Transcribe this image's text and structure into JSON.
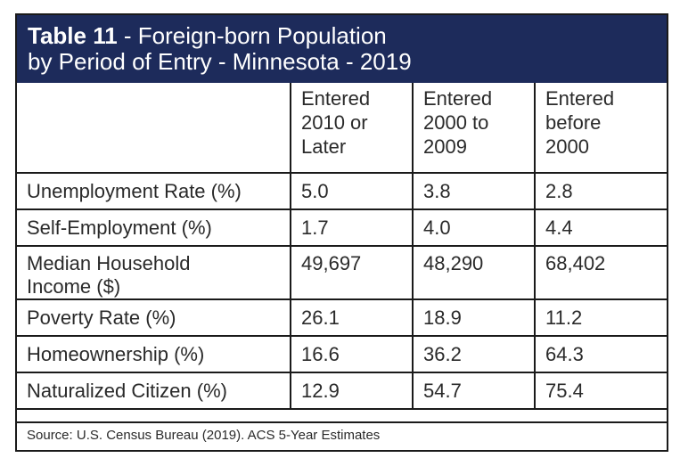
{
  "title": {
    "number": "Table 11",
    "line1_rest": " - Foreign-born Population",
    "line2": "by Period of Entry - Minnesota - 2019"
  },
  "columns": [
    {
      "line1": "Entered",
      "line2": "2010 or",
      "line3": "Later"
    },
    {
      "line1": "Entered",
      "line2": "2000 to",
      "line3": "2009"
    },
    {
      "line1": "Entered",
      "line2": "before",
      "line3": "2000"
    }
  ],
  "rows": [
    {
      "label": "Unemployment Rate (%)",
      "values": [
        "5.0",
        "3.8",
        "2.8"
      ]
    },
    {
      "label": "Self-Employment (%)",
      "values": [
        "1.7",
        "4.0",
        "4.4"
      ]
    },
    {
      "label_line1": "Median Household",
      "label_line2": "Income ($)",
      "values": [
        "49,697",
        "48,290",
        "68,402"
      ]
    },
    {
      "label": "Poverty Rate (%)",
      "values": [
        "26.1",
        "18.9",
        "11.2"
      ]
    },
    {
      "label": "Homeownership (%)",
      "values": [
        "16.6",
        "36.2",
        "64.3"
      ]
    },
    {
      "label": "Naturalized Citizen (%)",
      "values": [
        "12.9",
        "54.7",
        "75.4"
      ]
    }
  ],
  "source": "Source: U.S. Census Bureau (2019). ACS 5-Year Estimates",
  "colors": {
    "title_bg": "#1d2b5b",
    "title_text": "#ffffff",
    "border": "#1a1a1a"
  }
}
